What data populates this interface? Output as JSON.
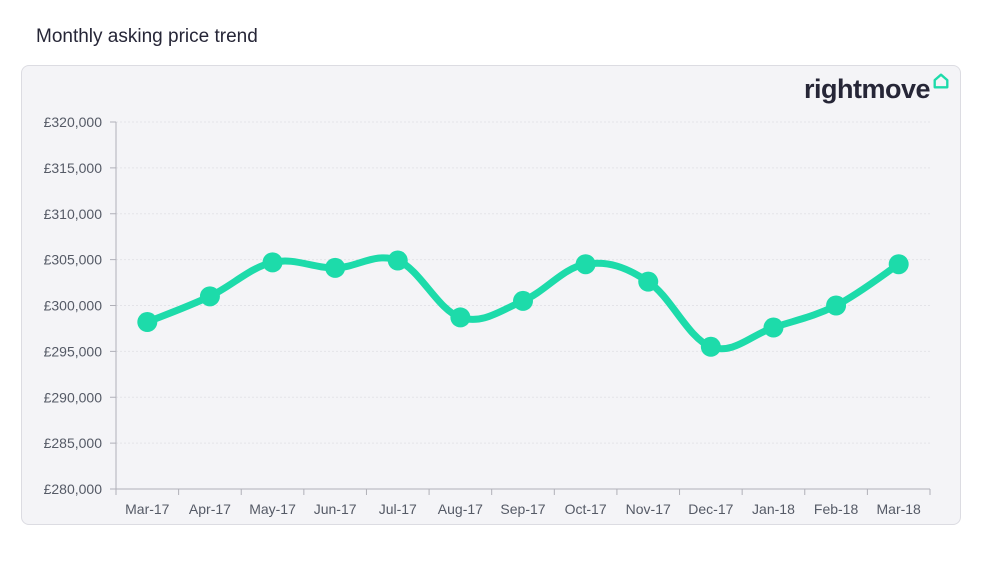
{
  "page": {
    "title": "Monthly asking price trend"
  },
  "logo": {
    "text": "rightmove"
  },
  "colors": {
    "line": "#1ddbaa",
    "axis": "#b0b0b8",
    "grid": "#e3e3e8",
    "text": "#555a66"
  },
  "chart_data": {
    "type": "line",
    "title": "Monthly asking price trend",
    "xlabel": "",
    "ylabel": "",
    "categories": [
      "Mar-17",
      "Apr-17",
      "May-17",
      "Jun-17",
      "Jul-17",
      "Aug-17",
      "Sep-17",
      "Oct-17",
      "Nov-17",
      "Dec-17",
      "Jan-18",
      "Feb-18",
      "Mar-18"
    ],
    "series": [
      {
        "values": [
          298200,
          301000,
          304700,
          304100,
          304900,
          298700,
          300500,
          304500,
          302600,
          295500,
          297600,
          300000,
          304500
        ]
      }
    ],
    "ylim": [
      280000,
      320000
    ],
    "yticks": [
      280000,
      285000,
      290000,
      295000,
      300000,
      305000,
      310000,
      315000,
      320000
    ],
    "ytick_labels": [
      "£280,000",
      "£285,000",
      "£290,000",
      "£295,000",
      "£300,000",
      "£305,000",
      "£310,000",
      "£315,000",
      "£320,000"
    ],
    "grid": true,
    "legend": "none"
  }
}
